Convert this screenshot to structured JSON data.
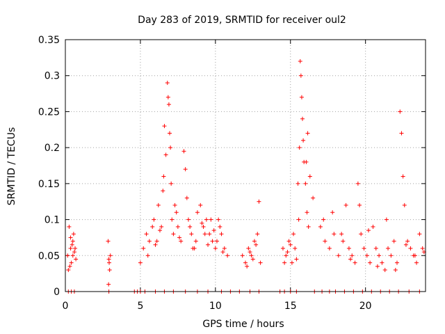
{
  "chart_data": {
    "type": "scatter",
    "title": "Day 283 of 2019, SRMTID for receiver oul2",
    "xlabel": "GPS time / hours",
    "ylabel": "SRMTID / TECUs",
    "xlim": [
      0,
      24
    ],
    "ylim": [
      0,
      0.35
    ],
    "x_ticks": [
      0,
      5,
      10,
      15,
      20
    ],
    "x_tick_labels": [
      "0",
      "5",
      "10",
      "15",
      "20"
    ],
    "y_ticks": [
      0,
      0.05,
      0.1,
      0.15,
      0.2,
      0.25,
      0.3,
      0.35
    ],
    "y_tick_labels": [
      "0",
      "0.05",
      "0.1",
      "0.15",
      "0.2",
      "0.25",
      "0.3",
      "0.35"
    ],
    "grid": true,
    "marker": "+",
    "marker_color": "#ff0000",
    "series": [
      {
        "name": "SRMTID",
        "x": [
          0.15,
          0.25,
          0.35,
          0.4,
          0.5,
          0.6,
          0.7,
          0.3,
          0.45,
          0.55,
          0.2,
          0.65,
          0.35,
          0.5,
          2.85,
          2.9,
          2.95,
          3.0,
          2.88,
          2.92,
          5.0,
          5.2,
          5.4,
          5.6,
          5.8,
          5.9,
          6.0,
          6.2,
          6.4,
          6.5,
          6.6,
          6.7,
          6.8,
          6.85,
          6.9,
          6.95,
          7.0,
          7.05,
          7.1,
          7.2,
          7.3,
          7.5,
          7.7,
          7.9,
          8.0,
          8.1,
          8.2,
          8.4,
          8.6,
          8.8,
          9.0,
          9.2,
          9.4,
          9.6,
          9.8,
          10.0,
          10.2,
          10.4,
          10.6,
          10.8,
          5.5,
          6.1,
          6.3,
          6.55,
          7.4,
          7.6,
          8.3,
          8.5,
          8.7,
          9.1,
          9.3,
          9.5,
          9.7,
          9.9,
          10.1,
          10.3,
          10.5,
          11.8,
          12.0,
          12.2,
          12.4,
          12.6,
          12.8,
          13.0,
          12.1,
          12.3,
          12.5,
          12.7,
          12.9,
          14.5,
          14.7,
          14.9,
          15.1,
          15.3,
          15.5,
          15.6,
          15.65,
          15.7,
          15.75,
          15.8,
          15.85,
          15.9,
          16.0,
          16.1,
          16.2,
          16.3,
          16.5,
          14.6,
          14.8,
          15.0,
          15.2,
          15.4,
          15.55,
          16.05,
          16.15,
          17.0,
          17.3,
          17.6,
          17.9,
          18.2,
          18.5,
          18.7,
          18.9,
          19.1,
          19.3,
          19.5,
          19.7,
          19.9,
          20.1,
          20.3,
          20.5,
          20.7,
          20.9,
          21.1,
          21.3,
          21.5,
          21.7,
          21.9,
          22.1,
          22.3,
          22.4,
          22.5,
          22.6,
          22.8,
          23.0,
          23.2,
          23.4,
          23.6,
          23.8,
          17.2,
          17.8,
          18.4,
          19.0,
          19.6,
          20.2,
          20.8,
          21.4,
          22.0,
          22.7,
          23.3,
          23.9,
          0.2,
          0.4,
          0.6,
          2.9,
          4.6,
          4.8,
          5.0,
          5.3,
          6.0,
          6.6,
          7.2,
          8.0,
          8.8,
          9.5,
          10.4,
          11.0,
          11.6,
          12.3,
          12.9,
          14.3,
          14.6,
          15.0,
          15.4,
          16.6,
          17.1,
          17.6,
          18.0,
          18.6,
          19.2,
          19.8,
          20.4,
          21.0,
          21.6,
          22.2,
          22.9,
          23.6
        ],
        "y": [
          0.05,
          0.09,
          0.06,
          0.04,
          0.07,
          0.055,
          0.045,
          0.035,
          0.065,
          0.08,
          0.03,
          0.06,
          0.075,
          0.05,
          0.07,
          0.045,
          0.03,
          0.05,
          0.01,
          0.04,
          0.04,
          0.06,
          0.08,
          0.07,
          0.09,
          0.1,
          0.065,
          0.12,
          0.09,
          0.14,
          0.23,
          0.19,
          0.29,
          0.27,
          0.26,
          0.22,
          0.2,
          0.15,
          0.1,
          0.08,
          0.12,
          0.09,
          0.07,
          0.195,
          0.17,
          0.13,
          0.1,
          0.08,
          0.06,
          0.11,
          0.12,
          0.09,
          0.1,
          0.08,
          0.07,
          0.06,
          0.1,
          0.08,
          0.06,
          0.05,
          0.05,
          0.07,
          0.085,
          0.16,
          0.11,
          0.075,
          0.09,
          0.06,
          0.07,
          0.095,
          0.08,
          0.065,
          0.1,
          0.085,
          0.07,
          0.09,
          0.055,
          0.05,
          0.04,
          0.06,
          0.05,
          0.07,
          0.08,
          0.04,
          0.035,
          0.055,
          0.045,
          0.065,
          0.125,
          0.06,
          0.05,
          0.07,
          0.04,
          0.06,
          0.15,
          0.2,
          0.32,
          0.3,
          0.27,
          0.24,
          0.21,
          0.18,
          0.15,
          0.11,
          0.09,
          0.16,
          0.13,
          0.04,
          0.055,
          0.065,
          0.08,
          0.045,
          0.1,
          0.18,
          0.22,
          0.09,
          0.07,
          0.06,
          0.08,
          0.05,
          0.07,
          0.12,
          0.06,
          0.05,
          0.04,
          0.15,
          0.08,
          0.06,
          0.05,
          0.04,
          0.09,
          0.06,
          0.05,
          0.04,
          0.03,
          0.06,
          0.05,
          0.07,
          0.04,
          0.25,
          0.22,
          0.16,
          0.12,
          0.07,
          0.06,
          0.05,
          0.04,
          0.08,
          0.06,
          0.1,
          0.11,
          0.08,
          0.045,
          0.12,
          0.085,
          0.035,
          0.1,
          0.03,
          0.065,
          0.05,
          0.055,
          0,
          0,
          0,
          0,
          0,
          0,
          0,
          0,
          0,
          0,
          0,
          0,
          0,
          0,
          0,
          0,
          0,
          0,
          0,
          0,
          0,
          0,
          0,
          0,
          0,
          0,
          0,
          0,
          0,
          0,
          0,
          0,
          0,
          0,
          0,
          0
        ]
      }
    ]
  }
}
